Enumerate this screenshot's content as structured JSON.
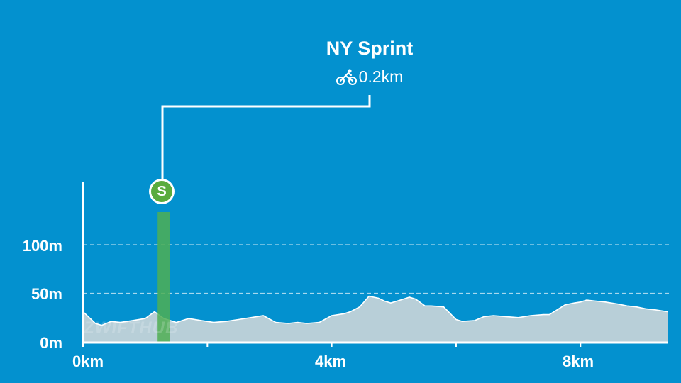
{
  "colors": {
    "background": "#0391cf",
    "profile_fill": "#b8cfd8",
    "profile_line": "#ffffff",
    "segment": "#4fae54"
  },
  "segment": {
    "name": "NY Sprint",
    "distance": "0.2km",
    "icon": "cyclist-icon",
    "badge_letter": "S"
  },
  "watermark": "ZWIFTHUB",
  "chart_data": {
    "type": "area",
    "title": "",
    "xlabel": "",
    "ylabel": "",
    "x_unit": "km",
    "y_unit": "m",
    "xlim": [
      0,
      9.4
    ],
    "ylim": [
      0,
      120
    ],
    "x_ticks": [
      0,
      2,
      4,
      6,
      8
    ],
    "x_tick_labels": [
      "0km",
      "4km",
      "8km"
    ],
    "y_ticks": [
      0,
      50,
      100
    ],
    "y_tick_labels": [
      "0m",
      "50m",
      "100m"
    ],
    "grid": "dashed horizontal at 50m and 100m",
    "x": [
      0,
      0.05,
      0.2,
      0.3,
      0.45,
      0.6,
      0.8,
      1.0,
      1.15,
      1.3,
      1.5,
      1.7,
      1.9,
      2.1,
      2.3,
      2.5,
      2.7,
      2.9,
      3.1,
      3.3,
      3.45,
      3.6,
      3.8,
      4.0,
      4.2,
      4.3,
      4.45,
      4.6,
      4.75,
      4.85,
      4.95,
      5.1,
      5.25,
      5.35,
      5.5,
      5.6,
      5.8,
      6.0,
      6.1,
      6.3,
      6.45,
      6.6,
      6.8,
      7.0,
      7.2,
      7.4,
      7.5,
      7.6,
      7.75,
      7.9,
      8.0,
      8.1,
      8.25,
      8.4,
      8.6,
      8.75,
      8.9,
      9.05,
      9.2,
      9.4
    ],
    "values": [
      31,
      28,
      19,
      17,
      21,
      20,
      22,
      24,
      31,
      24,
      20,
      24,
      22,
      20,
      21,
      23,
      25,
      27,
      20,
      19,
      20,
      19,
      20,
      27,
      29,
      31,
      36,
      47,
      45,
      42,
      40,
      43,
      46,
      44,
      37,
      37,
      36,
      23,
      21,
      22,
      26,
      27,
      26,
      25,
      27,
      28,
      28,
      32,
      38,
      40,
      41,
      43,
      42,
      41,
      39,
      37,
      36,
      34,
      33,
      31
    ],
    "segments": [
      {
        "name": "NY Sprint",
        "start_km": 1.2,
        "end_km": 1.4
      }
    ],
    "marker": {
      "label": "S",
      "at_km": 1.3
    }
  }
}
